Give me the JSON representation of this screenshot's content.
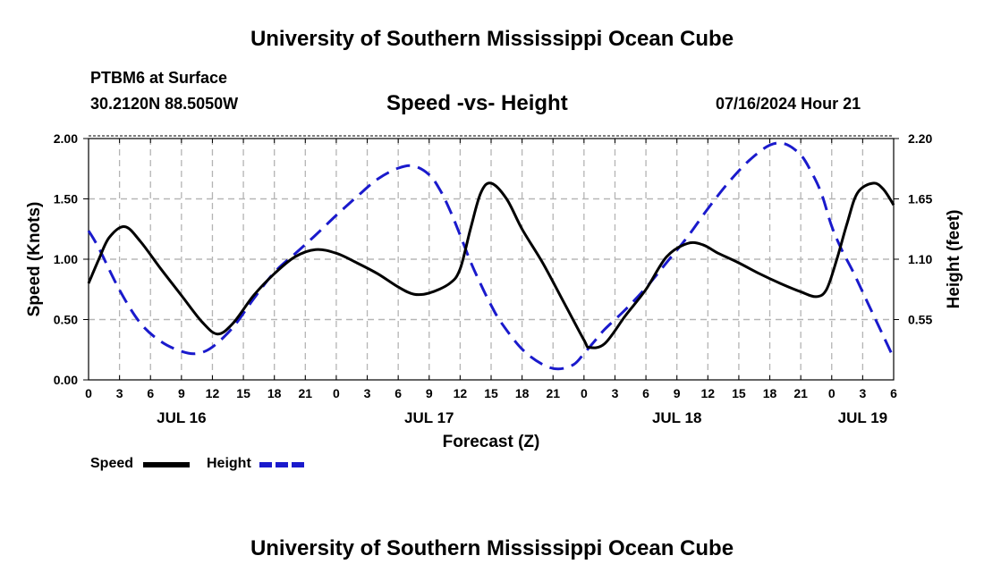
{
  "header": {
    "title": "University of Southern Mississippi Ocean Cube",
    "station": "PTBM6 at Surface",
    "coords": "30.2120N  88.5050W",
    "subtitle": "Speed -vs- Height",
    "datetime": "07/16/2024 Hour 21"
  },
  "footer": {
    "title": "University of Southern Mississippi Ocean Cube"
  },
  "legend": {
    "speed_label": "Speed",
    "height_label": "Height"
  },
  "colors": {
    "speed": "#000000",
    "height": "#1a1acc",
    "grid": "#b4b4b4"
  },
  "chart_data": {
    "type": "line",
    "title": "Speed -vs- Height",
    "xlabel": "Forecast (Z)",
    "ylabel": "Speed (Knots)",
    "y2label": "Height (feet)",
    "x_hours_range": [
      0,
      78
    ],
    "x_tick_labels": [
      "0",
      "3",
      "6",
      "9",
      "12",
      "15",
      "18",
      "21",
      "0",
      "3",
      "6",
      "9",
      "12",
      "15",
      "18",
      "21",
      "0",
      "3",
      "6",
      "9",
      "12",
      "15",
      "18",
      "21",
      "0",
      "3",
      "6"
    ],
    "day_labels": [
      {
        "label": "JUL 16",
        "hour": 9
      },
      {
        "label": "JUL 17",
        "hour": 33
      },
      {
        "label": "JUL 18",
        "hour": 57
      },
      {
        "label": "JUL 19",
        "hour": 75
      }
    ],
    "ylim": [
      0,
      2
    ],
    "yticks": [
      "0.00",
      "0.50",
      "1.00",
      "1.50",
      "2.00"
    ],
    "y2lim": [
      0,
      2.2
    ],
    "y2ticks": [
      "0.55",
      "1.10",
      "1.65",
      "2.20"
    ],
    "grid": true,
    "legend_position": "bottom-left",
    "series": [
      {
        "name": "Speed",
        "axis": "left",
        "style": "solid",
        "x": [
          0,
          1,
          2,
          3.5,
          5,
          7,
          9,
          11,
          12.5,
          14,
          16,
          18,
          20,
          22,
          24,
          26,
          28,
          30,
          31.5,
          33,
          35,
          36,
          37,
          38,
          39,
          40.5,
          42,
          44,
          46,
          48,
          48.5,
          50,
          52,
          54,
          56,
          58,
          59.5,
          61,
          63,
          65,
          67,
          69,
          70.5,
          71.5,
          72.5,
          73.5,
          74.5,
          76,
          77,
          78
        ],
        "y": [
          0.8,
          1.0,
          1.18,
          1.27,
          1.15,
          0.92,
          0.7,
          0.48,
          0.38,
          0.47,
          0.7,
          0.88,
          1.02,
          1.08,
          1.05,
          0.97,
          0.88,
          0.77,
          0.71,
          0.72,
          0.8,
          0.92,
          1.25,
          1.55,
          1.63,
          1.5,
          1.25,
          0.97,
          0.65,
          0.33,
          0.27,
          0.3,
          0.53,
          0.75,
          1.02,
          1.13,
          1.12,
          1.05,
          0.97,
          0.88,
          0.8,
          0.73,
          0.69,
          0.75,
          1.0,
          1.3,
          1.55,
          1.63,
          1.58,
          1.45
        ]
      },
      {
        "name": "Height",
        "axis": "right",
        "style": "dashed",
        "x": [
          0,
          1,
          3,
          5,
          7,
          9,
          10.5,
          12,
          14,
          16,
          18,
          20,
          22,
          24,
          26,
          28,
          30,
          31.5,
          33,
          34,
          35,
          36,
          37,
          38,
          39,
          40,
          42,
          44,
          45.5,
          47,
          48,
          49,
          50,
          52,
          54,
          56,
          58,
          60,
          62,
          64,
          66,
          67.5,
          69,
          70,
          71,
          72,
          73,
          74,
          75,
          76,
          77,
          78
        ],
        "y": [
          1.36,
          1.2,
          0.82,
          0.52,
          0.35,
          0.26,
          0.24,
          0.3,
          0.48,
          0.74,
          0.98,
          1.15,
          1.32,
          1.5,
          1.67,
          1.83,
          1.93,
          1.95,
          1.87,
          1.74,
          1.55,
          1.32,
          1.08,
          0.87,
          0.68,
          0.52,
          0.28,
          0.14,
          0.1,
          0.14,
          0.24,
          0.35,
          0.46,
          0.64,
          0.84,
          1.07,
          1.3,
          1.56,
          1.8,
          2.0,
          2.14,
          2.15,
          2.05,
          1.9,
          1.7,
          1.4,
          1.18,
          1.0,
          0.8,
          0.6,
          0.4,
          0.2
        ]
      }
    ]
  }
}
